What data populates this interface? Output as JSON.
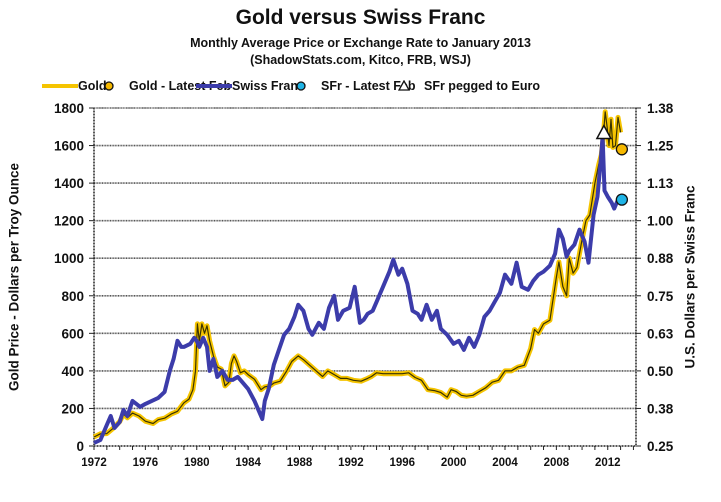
{
  "chart_data": {
    "type": "line",
    "title": "Gold versus Swiss Franc",
    "subtitle": "Monthly Average Price or Exchange Rate to January 2013",
    "source": "(ShadowStats.com, Kitco, FRB, WSJ)",
    "ylabel": "Gold Price - Dollars per Troy Ounce",
    "y2label": "U.S. Dollars per Swiss Franc",
    "xlim": [
      1972,
      2014.2
    ],
    "ylim": [
      0,
      1800
    ],
    "y2lim": [
      0.25,
      1.375
    ],
    "grid": true,
    "x_ticks": [
      1972,
      1976,
      1980,
      1984,
      1988,
      1992,
      1996,
      2000,
      2004,
      2008,
      2012
    ],
    "y_ticks": [
      "0",
      "200",
      "400",
      "600",
      "800",
      "1000",
      "1200",
      "1400",
      "1600",
      "1800"
    ],
    "y2_ticks": [
      "0.25",
      "0.38",
      "0.50",
      "0.63",
      "0.75",
      "0.88",
      "1.00",
      "1.13",
      "1.25",
      "1.38"
    ],
    "legend": [
      {
        "label": "Gold",
        "kind": "line",
        "color": "#f5c400"
      },
      {
        "label": "Gold - Latest Feb",
        "kind": "circle",
        "color": "#f5b800"
      },
      {
        "label": "Swiss Franc",
        "kind": "line",
        "color": "#3c3caa"
      },
      {
        "label": "SFr - Latest Feb",
        "kind": "circle",
        "color": "#1fb4e6"
      },
      {
        "label": "SFr pegged to Euro",
        "kind": "triangle",
        "color": "#ffffff"
      }
    ],
    "legend_position": "top",
    "colors": {
      "gold": "#f5c400",
      "gold_core": "#333300",
      "franc": "#3c3caa",
      "grid": "#555555"
    },
    "series": [
      {
        "name": "Gold",
        "axis": "left",
        "x": [
          1972.0,
          1972.5,
          1973.0,
          1973.5,
          1974.0,
          1974.3,
          1974.6,
          1975.0,
          1975.5,
          1976.0,
          1976.6,
          1977.0,
          1977.5,
          1978.0,
          1978.5,
          1979.0,
          1979.4,
          1979.7,
          1979.9,
          1980.05,
          1980.2,
          1980.4,
          1980.6,
          1980.8,
          1981.0,
          1981.3,
          1981.6,
          1981.9,
          1982.2,
          1982.5,
          1982.7,
          1982.9,
          1983.1,
          1983.4,
          1983.7,
          1984.0,
          1984.5,
          1985.0,
          1985.3,
          1985.7,
          1986.0,
          1986.5,
          1987.0,
          1987.4,
          1987.9,
          1988.3,
          1988.8,
          1989.3,
          1989.8,
          1990.2,
          1990.7,
          1991.2,
          1991.7,
          1992.2,
          1992.8,
          1993.3,
          1993.6,
          1994.0,
          1994.5,
          1995.0,
          1995.5,
          1996.0,
          1996.5,
          1997.0,
          1997.5,
          1998.0,
          1998.5,
          1999.0,
          1999.5,
          1999.8,
          2000.2,
          2000.6,
          2001.0,
          2001.5,
          2002.0,
          2002.5,
          2003.0,
          2003.5,
          2004.0,
          2004.5,
          2005.0,
          2005.5,
          2006.0,
          2006.3,
          2006.6,
          2007.0,
          2007.5,
          2008.0,
          2008.2,
          2008.5,
          2008.8,
          2009.0,
          2009.3,
          2009.6,
          2010.0,
          2010.3,
          2010.6,
          2011.0,
          2011.3,
          2011.5,
          2011.65,
          2011.8,
          2011.95,
          2012.1,
          2012.25,
          2012.4,
          2012.6,
          2012.8,
          2013.0
        ],
        "values": [
          48,
          65,
          66,
          95,
          130,
          170,
          150,
          175,
          160,
          132,
          120,
          140,
          148,
          170,
          185,
          230,
          250,
          300,
          400,
          650,
          560,
          650,
          600,
          640,
          560,
          480,
          420,
          410,
          320,
          340,
          440,
          480,
          450,
          390,
          400,
          380,
          355,
          300,
          315,
          320,
          335,
          345,
          400,
          450,
          480,
          460,
          430,
          400,
          370,
          400,
          380,
          360,
          360,
          350,
          345,
          360,
          370,
          390,
          385,
          385,
          385,
          385,
          390,
          365,
          350,
          300,
          295,
          285,
          260,
          300,
          290,
          270,
          265,
          270,
          290,
          310,
          340,
          350,
          400,
          400,
          420,
          430,
          520,
          620,
          600,
          650,
          670,
          900,
          980,
          850,
          800,
          1000,
          920,
          950,
          1100,
          1200,
          1230,
          1400,
          1500,
          1550,
          1640,
          1780,
          1700,
          1600,
          1740,
          1590,
          1600,
          1750,
          1670
        ],
        "color": "#f5c400"
      },
      {
        "name": "Swiss Franc",
        "axis": "right",
        "x": [
          1972.0,
          1972.5,
          1973.0,
          1973.3,
          1973.6,
          1974.0,
          1974.3,
          1974.6,
          1975.0,
          1975.3,
          1975.6,
          1976.0,
          1976.5,
          1977.0,
          1977.5,
          1977.9,
          1978.2,
          1978.5,
          1978.8,
          1979.0,
          1979.5,
          1979.8,
          1980.0,
          1980.2,
          1980.5,
          1980.8,
          1981.0,
          1981.3,
          1981.6,
          1982.0,
          1982.4,
          1982.8,
          1983.2,
          1983.6,
          1984.0,
          1984.5,
          1984.8,
          1985.1,
          1985.3,
          1985.6,
          1986.0,
          1986.4,
          1986.8,
          1987.2,
          1987.6,
          1987.9,
          1988.3,
          1988.7,
          1989.0,
          1989.5,
          1989.9,
          1990.3,
          1990.7,
          1991.0,
          1991.4,
          1991.9,
          1992.3,
          1992.7,
          1993.0,
          1993.3,
          1993.7,
          1994.0,
          1994.5,
          1995.0,
          1995.3,
          1995.7,
          1996.0,
          1996.4,
          1996.8,
          1997.2,
          1997.5,
          1997.9,
          1998.3,
          1998.7,
          1999.0,
          1999.5,
          2000.0,
          2000.4,
          2000.8,
          2001.2,
          2001.6,
          2002.0,
          2002.4,
          2002.8,
          2003.2,
          2003.6,
          2004.0,
          2004.5,
          2004.9,
          2005.3,
          2005.8,
          2006.2,
          2006.6,
          2007.0,
          2007.5,
          2007.9,
          2008.2,
          2008.5,
          2008.8,
          2009.0,
          2009.4,
          2009.8,
          2010.2,
          2010.5,
          2010.9,
          2011.2,
          2011.45,
          2011.6,
          2011.75,
          2012.0,
          2012.3,
          2012.5,
          2012.8,
          2013.0
        ],
        "values": [
          0.26,
          0.27,
          0.32,
          0.35,
          0.31,
          0.33,
          0.37,
          0.35,
          0.4,
          0.39,
          0.38,
          0.39,
          0.4,
          0.41,
          0.43,
          0.5,
          0.54,
          0.6,
          0.58,
          0.58,
          0.59,
          0.61,
          0.6,
          0.58,
          0.61,
          0.58,
          0.5,
          0.54,
          0.48,
          0.5,
          0.47,
          0.47,
          0.48,
          0.46,
          0.44,
          0.4,
          0.37,
          0.34,
          0.4,
          0.44,
          0.52,
          0.57,
          0.62,
          0.64,
          0.68,
          0.72,
          0.7,
          0.64,
          0.62,
          0.66,
          0.64,
          0.71,
          0.75,
          0.67,
          0.7,
          0.71,
          0.78,
          0.66,
          0.67,
          0.69,
          0.7,
          0.73,
          0.78,
          0.83,
          0.87,
          0.82,
          0.84,
          0.79,
          0.7,
          0.69,
          0.67,
          0.72,
          0.67,
          0.7,
          0.64,
          0.62,
          0.59,
          0.6,
          0.57,
          0.61,
          0.58,
          0.62,
          0.68,
          0.7,
          0.73,
          0.76,
          0.82,
          0.79,
          0.86,
          0.78,
          0.77,
          0.8,
          0.82,
          0.83,
          0.85,
          0.89,
          0.97,
          0.94,
          0.88,
          0.9,
          0.92,
          0.97,
          0.93,
          0.86,
          1.02,
          1.08,
          1.2,
          1.28,
          1.1,
          1.08,
          1.06,
          1.04,
          1.07,
          1.08
        ],
        "color": "#3c3caa"
      }
    ],
    "markers": [
      {
        "name": "Gold - Latest Feb",
        "axis": "left",
        "x": 2013.1,
        "value": 1580,
        "shape": "circle",
        "color": "#f5b800"
      },
      {
        "name": "SFr - Latest Feb",
        "axis": "right",
        "x": 2013.1,
        "value": 1.07,
        "shape": "circle",
        "color": "#1fb4e6"
      },
      {
        "name": "SFr pegged to Euro",
        "axis": "right",
        "x": 2011.7,
        "value": 1.29,
        "shape": "triangle",
        "color": "#ffffff"
      }
    ]
  }
}
